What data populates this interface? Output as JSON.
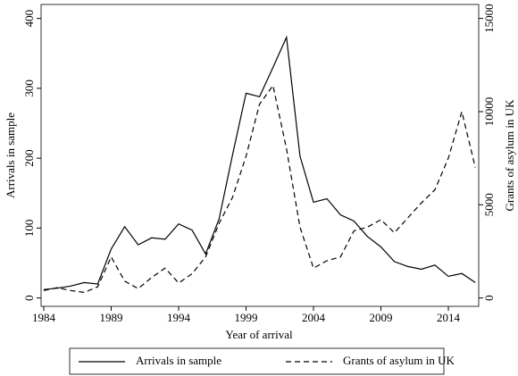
{
  "chart_data": {
    "type": "line",
    "x_label": "Year of arrival",
    "y_label": "Arrivals in sample",
    "y2_label": "Grants of asylum in UK",
    "x": [
      1984,
      1985,
      1986,
      1987,
      1988,
      1989,
      1990,
      1991,
      1992,
      1993,
      1994,
      1995,
      1996,
      1997,
      1998,
      1999,
      2000,
      2001,
      2002,
      2003,
      2004,
      2005,
      2006,
      2007,
      2008,
      2009,
      2010,
      2011,
      2012,
      2013,
      2014,
      2015,
      2016
    ],
    "series": [
      {
        "name": "Arrivals in sample",
        "color": "#000000",
        "line_style": "solid",
        "values": [
          12,
          14,
          17,
          22,
          20,
          70,
          102,
          76,
          86,
          84,
          106,
          97,
          63,
          113,
          205,
          293,
          288,
          330,
          373,
          203,
          137,
          142,
          119,
          110,
          88,
          73,
          52,
          45,
          41,
          47,
          31,
          35,
          22
        ]
      },
      {
        "name": "Grants of asylum in UK",
        "color": "#000000",
        "line_style": "dashed",
        "axis": "y2",
        "values": [
          400,
          550,
          400,
          300,
          600,
          2200,
          900,
          500,
          1100,
          1600,
          800,
          1300,
          2200,
          4000,
          5400,
          7600,
          10400,
          11400,
          8000,
          3800,
          1600,
          2000,
          2200,
          3600,
          3800,
          4200,
          3500,
          4300,
          5100,
          5800,
          7500,
          10000,
          7000
        ]
      }
    ],
    "xlim": [
      1983.8,
      2016.25
    ],
    "xticks": [
      1984,
      1989,
      1994,
      1999,
      2004,
      2009,
      2014
    ],
    "ylim": [
      -12,
      420
    ],
    "yticks": [
      0,
      100,
      200,
      300,
      400
    ],
    "y2lim": [
      -450,
      15750
    ],
    "y2ticks": [
      0,
      5000,
      10000,
      15000
    ],
    "legend": "bottom"
  }
}
